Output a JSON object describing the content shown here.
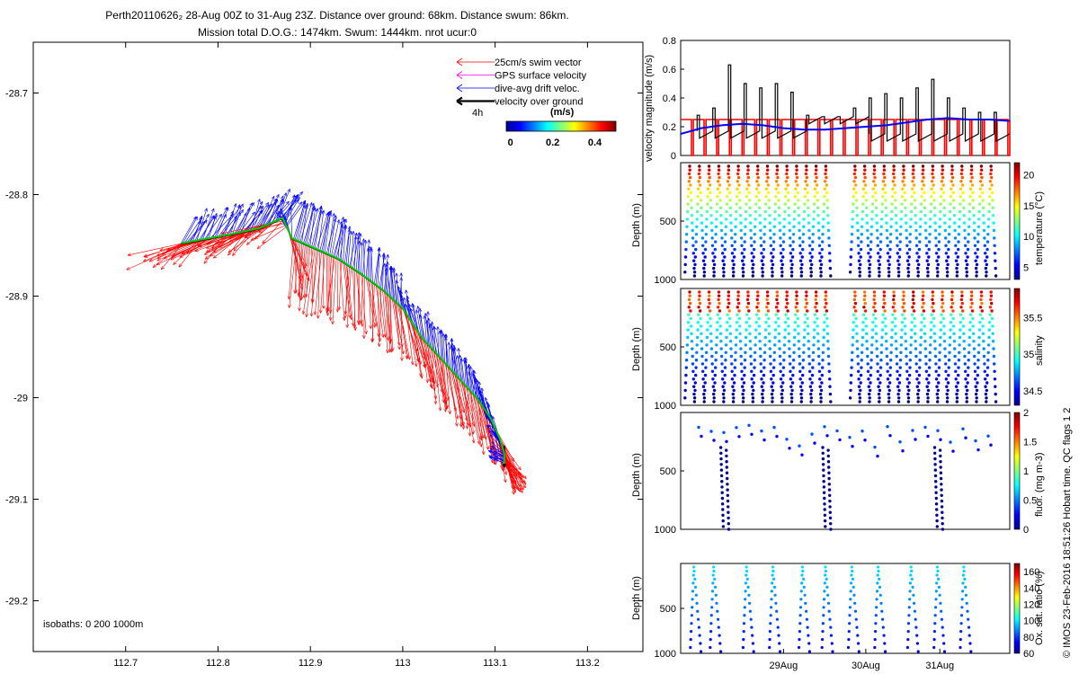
{
  "title": {
    "line1": "Perth20110626₂ 28-Aug 00Z to 31-Aug 23Z. Distance over ground: 68km. Distance swum: 86km.",
    "line2": "Mission total D.O.G.: 1474km. Swum: 1444km. nrot ucur:0"
  },
  "footer_note": "© IMOS 23-Feb-2016 18:51:26 Hobart time. QC flags 1  2",
  "colors": {
    "swim": "#ff0000",
    "gps": "#ff00ff",
    "drift": "#0000ff",
    "ground": "#000000",
    "track": "#00cc00"
  },
  "chart_data": [
    {
      "id": "map",
      "type": "scatter",
      "title": "",
      "xlabel": "",
      "ylabel": "",
      "xlim": [
        112.6,
        113.26
      ],
      "ylim": [
        -29.25,
        -28.65
      ],
      "xticks": [
        112.7,
        112.8,
        112.9,
        113,
        113.1,
        113.2
      ],
      "xtick_labels": [
        "112.7",
        "112.8",
        "112.9",
        "113",
        "113.1",
        "113.2"
      ],
      "yticks": [
        -28.7,
        -28.8,
        -28.9,
        -29,
        -29.1,
        -29.2
      ],
      "ytick_labels": [
        "-28.7",
        "-28.8",
        "-28.9",
        "-29",
        "-29.1",
        "-29.2"
      ],
      "track": {
        "lon": [
          112.76,
          112.79,
          112.82,
          112.845,
          112.87,
          112.88,
          112.905,
          112.93,
          112.955,
          112.98,
          113.0,
          113.02,
          113.04,
          113.06,
          113.08,
          113.095,
          113.105,
          113.11,
          113.11
        ],
        "lat": [
          -28.848,
          -28.843,
          -28.838,
          -28.833,
          -28.823,
          -28.843,
          -28.853,
          -28.863,
          -28.878,
          -28.895,
          -28.912,
          -28.94,
          -28.96,
          -28.98,
          -29.0,
          -29.02,
          -29.04,
          -29.055,
          -29.065
        ]
      },
      "arrows_note": "swim (red), drift (blue) and ground (black) velocity vectors along track",
      "legend": {
        "items": [
          {
            "label": "25cm/s swim vector",
            "color": "#ff0000"
          },
          {
            "label": "GPS surface velocity",
            "color": "#ff00ff"
          },
          {
            "label": "dive-avg drift veloc.",
            "color": "#0000ff"
          },
          {
            "label": "velocity over ground",
            "color": "#000000"
          }
        ],
        "time_label": "4h",
        "colorbar_title": "(m/s)",
        "colorbar_ticks": [
          "0",
          "0.2",
          "0.4"
        ],
        "colorbar_range": [
          -0.02,
          0.5
        ]
      },
      "isobaths_label": "isobaths: 0   200  1000m"
    },
    {
      "id": "velocity",
      "type": "line",
      "ylabel": "velocity magnitude (m/s)",
      "ylim": [
        0,
        0.8
      ],
      "yticks": [
        "0",
        "0.2",
        "0.4",
        "0.6",
        "0.8"
      ],
      "xlim": [
        0,
        4
      ],
      "series": [
        {
          "name": "swim",
          "color": "#ff0000",
          "baseline": 0.25
        },
        {
          "name": "drift",
          "color": "#0000ff",
          "x": [
            0,
            0.25,
            0.5,
            0.75,
            1,
            1.25,
            1.5,
            1.75,
            2,
            2.25,
            2.5,
            2.75,
            3,
            3.25,
            3.5,
            3.75,
            4
          ],
          "values": [
            0.15,
            0.19,
            0.21,
            0.22,
            0.21,
            0.19,
            0.18,
            0.18,
            0.19,
            0.2,
            0.21,
            0.23,
            0.25,
            0.26,
            0.25,
            0.25,
            0.24
          ]
        },
        {
          "name": "ground",
          "color": "#000000",
          "spikes": [
            0.28,
            0.33,
            0.63,
            0.5,
            0.47,
            0.5,
            0.44,
            0.28,
            0.27,
            0.27,
            0.33,
            0.4,
            0.43,
            0.4,
            0.47,
            0.53,
            0.4,
            0.33,
            0.3,
            0.3
          ]
        }
      ]
    },
    {
      "id": "temperature",
      "type": "scatter",
      "ylabel": "Depth (m)",
      "ylim": [
        1000,
        0
      ],
      "yticks": [
        "500",
        "1000"
      ],
      "colorbar_label": "temperature (°C)",
      "colorbar_range": [
        3,
        22
      ],
      "colorbar_ticks": [
        "5",
        "10",
        "15",
        "20"
      ],
      "dives": 32
    },
    {
      "id": "salinity",
      "type": "scatter",
      "ylabel": "Depth (m)",
      "ylim": [
        1000,
        0
      ],
      "yticks": [
        "500",
        "1000"
      ],
      "colorbar_label": "salinity",
      "colorbar_range": [
        34.3,
        35.9
      ],
      "colorbar_ticks": [
        "34.5",
        "35",
        "35.5"
      ],
      "dives": 32
    },
    {
      "id": "fluorescence",
      "type": "scatter",
      "ylabel": "Depth (m)",
      "ylim": [
        1000,
        0
      ],
      "yticks": [
        "500",
        "1000"
      ],
      "colorbar_label": "fluor. (mg m-3)",
      "colorbar_range": [
        0,
        2
      ],
      "colorbar_ticks": [
        "0",
        "0.5",
        "1",
        "1.5",
        "2"
      ],
      "deep_dives": [
        0.13,
        0.44,
        0.78
      ]
    },
    {
      "id": "oxygen",
      "type": "scatter",
      "ylabel": "Depth (m)",
      "ylim": [
        1000,
        0
      ],
      "yticks": [
        "500",
        "1000"
      ],
      "colorbar_label": "Ox. sat. ratio (%)",
      "colorbar_range": [
        60,
        170
      ],
      "colorbar_ticks": [
        "60",
        "80",
        "100",
        "120",
        "140",
        "160"
      ],
      "xticks": [
        1.25,
        2.25,
        3.15
      ],
      "xtick_labels": [
        "29Aug",
        "30Aug",
        "31Aug"
      ]
    }
  ]
}
